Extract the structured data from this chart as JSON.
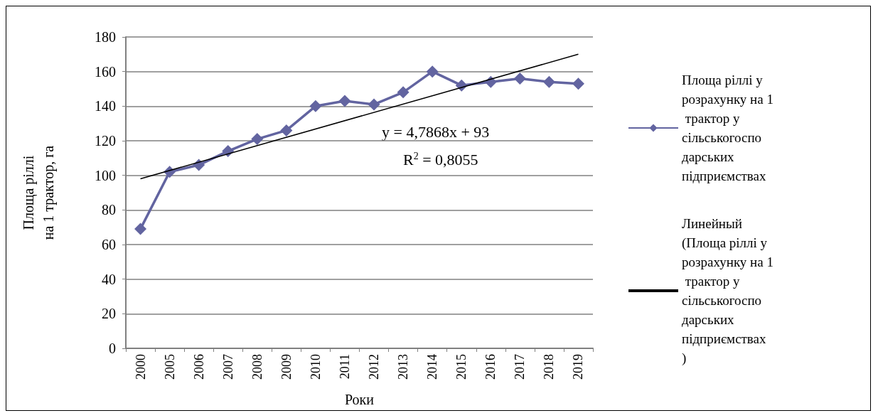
{
  "chart_data": {
    "type": "line",
    "xlabel": "Роки",
    "ylabel": "Площа ріллі\nна 1 трактор, га",
    "categories": [
      "2000",
      "2005",
      "2006",
      "2007",
      "2008",
      "2009",
      "2010",
      "2011",
      "2012",
      "2013",
      "2014",
      "2015",
      "2016",
      "2017",
      "2018",
      "2019"
    ],
    "series": [
      {
        "name": "Площа ріллі у розрахунку на 1 трактор у сільськогосподарських підприємствах",
        "color": "#6264a0",
        "values": [
          69,
          102,
          106,
          114,
          121,
          126,
          140,
          143,
          141,
          148,
          160,
          152,
          154,
          156,
          154,
          153
        ],
        "marker": "diamond"
      },
      {
        "name": "Линейный (Площа ріллі у розрахунку на 1 трактор у сільськогосподарських підприємствах)",
        "color": "#000000",
        "values": [
          98,
          null,
          null,
          null,
          null,
          null,
          null,
          null,
          null,
          null,
          null,
          null,
          null,
          null,
          null,
          170
        ],
        "marker": "none"
      }
    ],
    "annotations": [
      "y = 4,7868x + 93",
      "R$^{2}$ = 0,8055"
    ],
    "ylim": [
      0,
      180
    ],
    "yticks": [
      0,
      20,
      40,
      60,
      80,
      100,
      120,
      140,
      160,
      180
    ],
    "grid": "y",
    "legend": "right"
  }
}
